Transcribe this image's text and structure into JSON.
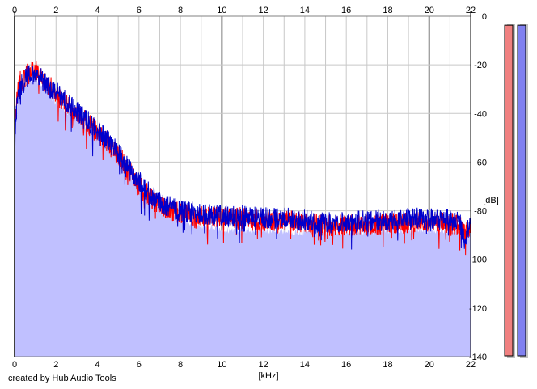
{
  "footer_text": "created by Hub Audio Tools",
  "chart_data": {
    "type": "area",
    "title": "",
    "xlabel": "[kHz]",
    "ylabel": "[dB]",
    "x_ticks": [
      "0",
      "2",
      "4",
      "6",
      "8",
      "10",
      "12",
      "14",
      "16",
      "18",
      "20",
      "22"
    ],
    "y_ticks": [
      "0",
      "-20",
      "-40",
      "-60",
      "-80",
      "-100",
      "-120",
      "-140"
    ],
    "xlim": [
      0,
      22
    ],
    "ylim": [
      -140,
      0
    ],
    "grid": true,
    "colors": {
      "area_fill": "#c0c0ff",
      "channel_1": "#ff0000",
      "channel_2": "#0000cc",
      "meter_left_fill": "#f08080",
      "meter_right_fill": "#8080f0",
      "grid_minor": "#c8c8c8",
      "grid_major": "#808080"
    },
    "series": [
      {
        "x": [
          0,
          0.1,
          0.2,
          0.3,
          0.4,
          0.6,
          0.8,
          1,
          1.2,
          1.5,
          2,
          2.5,
          3,
          3.5,
          4,
          4.5,
          5,
          5.5,
          6,
          6.5,
          7,
          8,
          9,
          10,
          11,
          12,
          13,
          14,
          15,
          16,
          17,
          18,
          19,
          20,
          21,
          21.5,
          21.7,
          22
        ],
        "values": [
          -50,
          -35,
          -28,
          -26,
          -27,
          -24,
          -23,
          -22,
          -24,
          -27,
          -32,
          -36,
          -40,
          -44,
          -48,
          -52,
          -57,
          -63,
          -70,
          -74,
          -78,
          -81,
          -82,
          -83,
          -83,
          -84,
          -84,
          -85,
          -86,
          -86,
          -86,
          -85,
          -85,
          -84,
          -85,
          -86,
          -90,
          -86
        ]
      },
      {
        "x": [
          0,
          0.1,
          0.2,
          0.3,
          0.4,
          0.6,
          0.8,
          1,
          1.2,
          1.5,
          2,
          2.5,
          3,
          3.5,
          4,
          4.5,
          5,
          5.5,
          6,
          6.5,
          7,
          8,
          9,
          10,
          11,
          12,
          13,
          14,
          15,
          16,
          17,
          18,
          19,
          20,
          21,
          21.5,
          21.7,
          22
        ],
        "values": [
          -55,
          -38,
          -30,
          -28,
          -28,
          -25,
          -24,
          -23,
          -25,
          -28,
          -31,
          -35,
          -39,
          -43,
          -47,
          -51,
          -56,
          -62,
          -68,
          -73,
          -77,
          -80,
          -81,
          -82,
          -82,
          -83,
          -83,
          -84,
          -85,
          -85,
          -84,
          -84,
          -83,
          -83,
          -84,
          -85,
          -92,
          -85
        ]
      }
    ],
    "area": {
      "x": [
        0,
        0.2,
        0.6,
        1,
        1.5,
        2,
        2.5,
        3,
        3.5,
        4,
        4.5,
        5,
        5.5,
        6,
        6.5,
        7,
        8,
        9,
        10,
        12,
        14,
        16,
        18,
        20,
        21,
        22
      ],
      "values": [
        -48,
        -34,
        -27,
        -26,
        -30,
        -36,
        -39,
        -42,
        -46,
        -50,
        -54,
        -58,
        -64,
        -71,
        -76,
        -80,
        -84,
        -86,
        -88,
        -88,
        -89,
        -89,
        -88,
        -88,
        -88,
        -89
      ]
    },
    "level_meters": [
      {
        "channel": "left",
        "level": 0.99
      },
      {
        "channel": "right",
        "level": 0.99
      }
    ]
  }
}
